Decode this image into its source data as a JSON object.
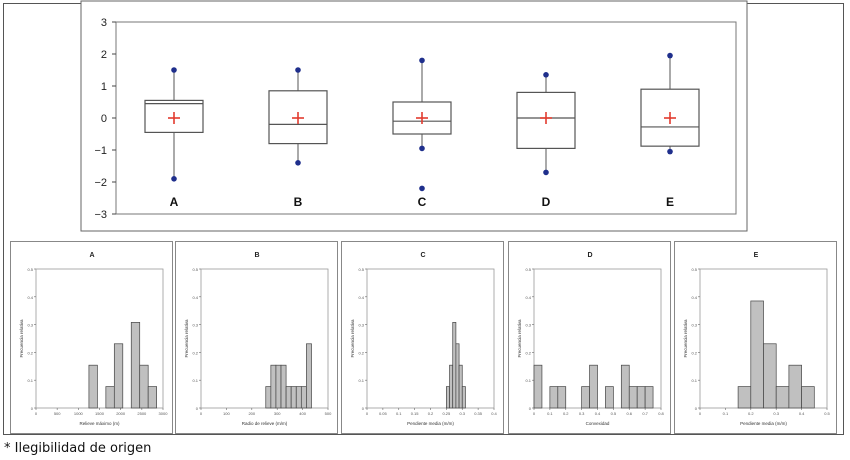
{
  "box_chart": {
    "y_ticks": [
      "3",
      "2",
      "1",
      "0",
      "−1",
      "−2",
      "−3"
    ],
    "ylim": [
      -3,
      3
    ]
  },
  "chart_data": [
    {
      "type": "box",
      "ylim": [
        -3,
        3
      ],
      "y_ticks": [
        3,
        2,
        1,
        0,
        -1,
        -2,
        -3
      ],
      "categories": [
        "A",
        "B",
        "C",
        "D",
        "E"
      ],
      "boxes": [
        {
          "name": "A",
          "whisker_low": -1.9,
          "q1": -0.45,
          "median": 0.45,
          "q3": 0.55,
          "whisker_high": 1.5,
          "mean": 0.0,
          "outliers": []
        },
        {
          "name": "B",
          "whisker_low": -1.4,
          "q1": -0.8,
          "median": -0.2,
          "q3": 0.85,
          "whisker_high": 1.5,
          "mean": 0.0,
          "outliers": []
        },
        {
          "name": "C",
          "whisker_low": -0.95,
          "q1": -0.5,
          "median": -0.1,
          "q3": 0.5,
          "whisker_high": 1.8,
          "mean": 0.0,
          "outliers": [
            -2.2
          ]
        },
        {
          "name": "D",
          "whisker_low": -1.7,
          "q1": -0.95,
          "median": 0.0,
          "q3": 0.8,
          "whisker_high": 1.35,
          "mean": 0.0,
          "outliers": []
        },
        {
          "name": "E",
          "whisker_low": -1.05,
          "q1": -0.88,
          "median": -0.28,
          "q3": 0.9,
          "whisker_high": 1.95,
          "mean": 0.0,
          "outliers": []
        }
      ]
    },
    {
      "type": "bar",
      "title": "A",
      "xlabel": "Relieve máximo (m)",
      "ylabel": "Frecuencia relativa",
      "xlim": [
        0,
        3000
      ],
      "ylim": [
        0,
        0.5
      ],
      "x_ticks": [
        "0",
        "500",
        "1000",
        "1500",
        "2000",
        "2500",
        "3000"
      ],
      "y_ticks": [
        "0",
        "0.1",
        "0.2",
        "0.3",
        "0.4",
        "0.5"
      ],
      "bins": [
        [
          1250,
          1450,
          0.154
        ],
        [
          1650,
          1850,
          0.077
        ],
        [
          1850,
          2050,
          0.231
        ],
        [
          2250,
          2450,
          0.308
        ],
        [
          2450,
          2650,
          0.154
        ],
        [
          2650,
          2850,
          0.077
        ]
      ]
    },
    {
      "type": "bar",
      "title": "B",
      "xlabel": "Radio de relieve (m/m)",
      "ylabel": "Frecuencia relativa",
      "xlim": [
        0,
        500
      ],
      "ylim": [
        0,
        0.5
      ],
      "x_ticks": [
        "0",
        "100",
        "200",
        "300",
        "400",
        "500"
      ],
      "y_ticks": [
        "0",
        "0.1",
        "0.2",
        "0.3",
        "0.4",
        "0.5"
      ],
      "bins": [
        [
          255,
          275,
          0.077
        ],
        [
          275,
          295,
          0.154
        ],
        [
          295,
          315,
          0.154
        ],
        [
          315,
          335,
          0.154
        ],
        [
          335,
          355,
          0.077
        ],
        [
          355,
          375,
          0.077
        ],
        [
          375,
          395,
          0.077
        ],
        [
          395,
          415,
          0.077
        ],
        [
          415,
          435,
          0.231
        ]
      ]
    },
    {
      "type": "bar",
      "title": "C",
      "xlabel": "Pendiente media (m/m)",
      "ylabel": "Frecuencia relativa",
      "xlim": [
        0,
        0.4
      ],
      "ylim": [
        0,
        0.5
      ],
      "x_ticks": [
        "0",
        "0.05",
        "0.1",
        "0.15",
        "0.2",
        "0.25",
        "0.3",
        "0.35",
        "0.4"
      ],
      "y_ticks": [
        "0",
        "0.1",
        "0.2",
        "0.3",
        "0.4",
        "0.5"
      ],
      "bins": [
        [
          0.25,
          0.26,
          0.077
        ],
        [
          0.26,
          0.27,
          0.154
        ],
        [
          0.27,
          0.28,
          0.308
        ],
        [
          0.28,
          0.29,
          0.231
        ],
        [
          0.29,
          0.3,
          0.154
        ],
        [
          0.3,
          0.31,
          0.077
        ]
      ]
    },
    {
      "type": "bar",
      "title": "D",
      "xlabel": "Convexidad",
      "ylabel": "Frecuencia relativa",
      "xlim": [
        0,
        0.8
      ],
      "ylim": [
        0,
        0.5
      ],
      "x_ticks": [
        "0",
        "0.1",
        "0.2",
        "0.3",
        "0.4",
        "0.5",
        "0.6",
        "0.7",
        "0.8"
      ],
      "y_ticks": [
        "0",
        "0.1",
        "0.2",
        "0.3",
        "0.4",
        "0.5"
      ],
      "bins": [
        [
          0.0,
          0.05,
          0.154
        ],
        [
          0.1,
          0.15,
          0.077
        ],
        [
          0.15,
          0.2,
          0.077
        ],
        [
          0.3,
          0.35,
          0.077
        ],
        [
          0.35,
          0.4,
          0.154
        ],
        [
          0.45,
          0.5,
          0.077
        ],
        [
          0.55,
          0.6,
          0.154
        ],
        [
          0.6,
          0.65,
          0.077
        ],
        [
          0.65,
          0.7,
          0.077
        ],
        [
          0.7,
          0.75,
          0.077
        ]
      ]
    },
    {
      "type": "bar",
      "title": "E",
      "xlabel": "Pendiente media (m/m)",
      "ylabel": "Frecuencia relativa",
      "xlim": [
        0,
        0.5
      ],
      "ylim": [
        0,
        0.5
      ],
      "x_ticks": [
        "0",
        "0.1",
        "0.2",
        "0.3",
        "0.4",
        "0.5"
      ],
      "y_ticks": [
        "0",
        "0.1",
        "0.2",
        "0.3",
        "0.4",
        "0.5"
      ],
      "bins": [
        [
          0.15,
          0.2,
          0.077
        ],
        [
          0.2,
          0.25,
          0.385
        ],
        [
          0.25,
          0.3,
          0.231
        ],
        [
          0.3,
          0.35,
          0.077
        ],
        [
          0.35,
          0.4,
          0.154
        ],
        [
          0.4,
          0.45,
          0.077
        ]
      ]
    }
  ],
  "colors": {
    "box_stroke": "#555555",
    "whisker_cap": "#1f2f8c",
    "mean_marker": "#e23b2e",
    "bar_fill": "#c0c0c0",
    "bar_stroke": "#444444"
  },
  "footnote": "* Ilegibilidad de origen"
}
